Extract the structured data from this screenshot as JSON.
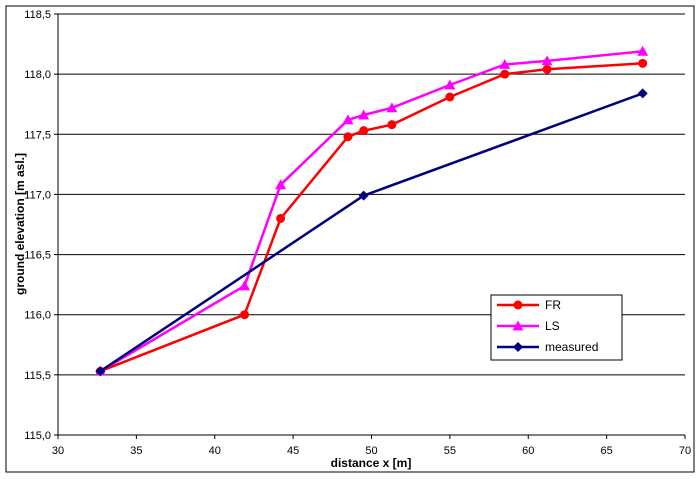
{
  "chart_data": {
    "type": "line",
    "title": "",
    "xlabel": "distance x [m]",
    "ylabel": "ground elevation [m asl.]",
    "xlim": [
      30,
      70
    ],
    "ylim": [
      115.0,
      118.5
    ],
    "x_ticks": [
      "30",
      "35",
      "40",
      "45",
      "50",
      "55",
      "60",
      "65",
      "70"
    ],
    "y_ticks": [
      "115,0",
      "115,5",
      "116,0",
      "116,5",
      "117,0",
      "117,5",
      "118,0",
      "118,5"
    ],
    "grid": "horizontal",
    "legend_position": "lower-right",
    "series": [
      {
        "name": "FR",
        "color": "#ff0000",
        "marker": "circle",
        "x": [
          32.7,
          41.9,
          44.2,
          48.5,
          49.5,
          51.3,
          55.0,
          58.5,
          61.2,
          67.3
        ],
        "y": [
          115.53,
          116.0,
          116.8,
          117.48,
          117.53,
          117.58,
          117.81,
          118.0,
          118.04,
          118.09
        ]
      },
      {
        "name": "LS",
        "color": "#ff00ff",
        "marker": "triangle",
        "x": [
          32.7,
          41.9,
          44.2,
          48.5,
          49.5,
          51.3,
          55.0,
          58.5,
          61.2,
          67.3
        ],
        "y": [
          115.53,
          116.24,
          117.08,
          117.62,
          117.66,
          117.72,
          117.91,
          118.08,
          118.11,
          118.19
        ]
      },
      {
        "name": "measured",
        "color": "#000080",
        "marker": "diamond",
        "x": [
          32.7,
          49.5,
          67.3
        ],
        "y": [
          115.53,
          116.99,
          117.84
        ]
      }
    ]
  }
}
